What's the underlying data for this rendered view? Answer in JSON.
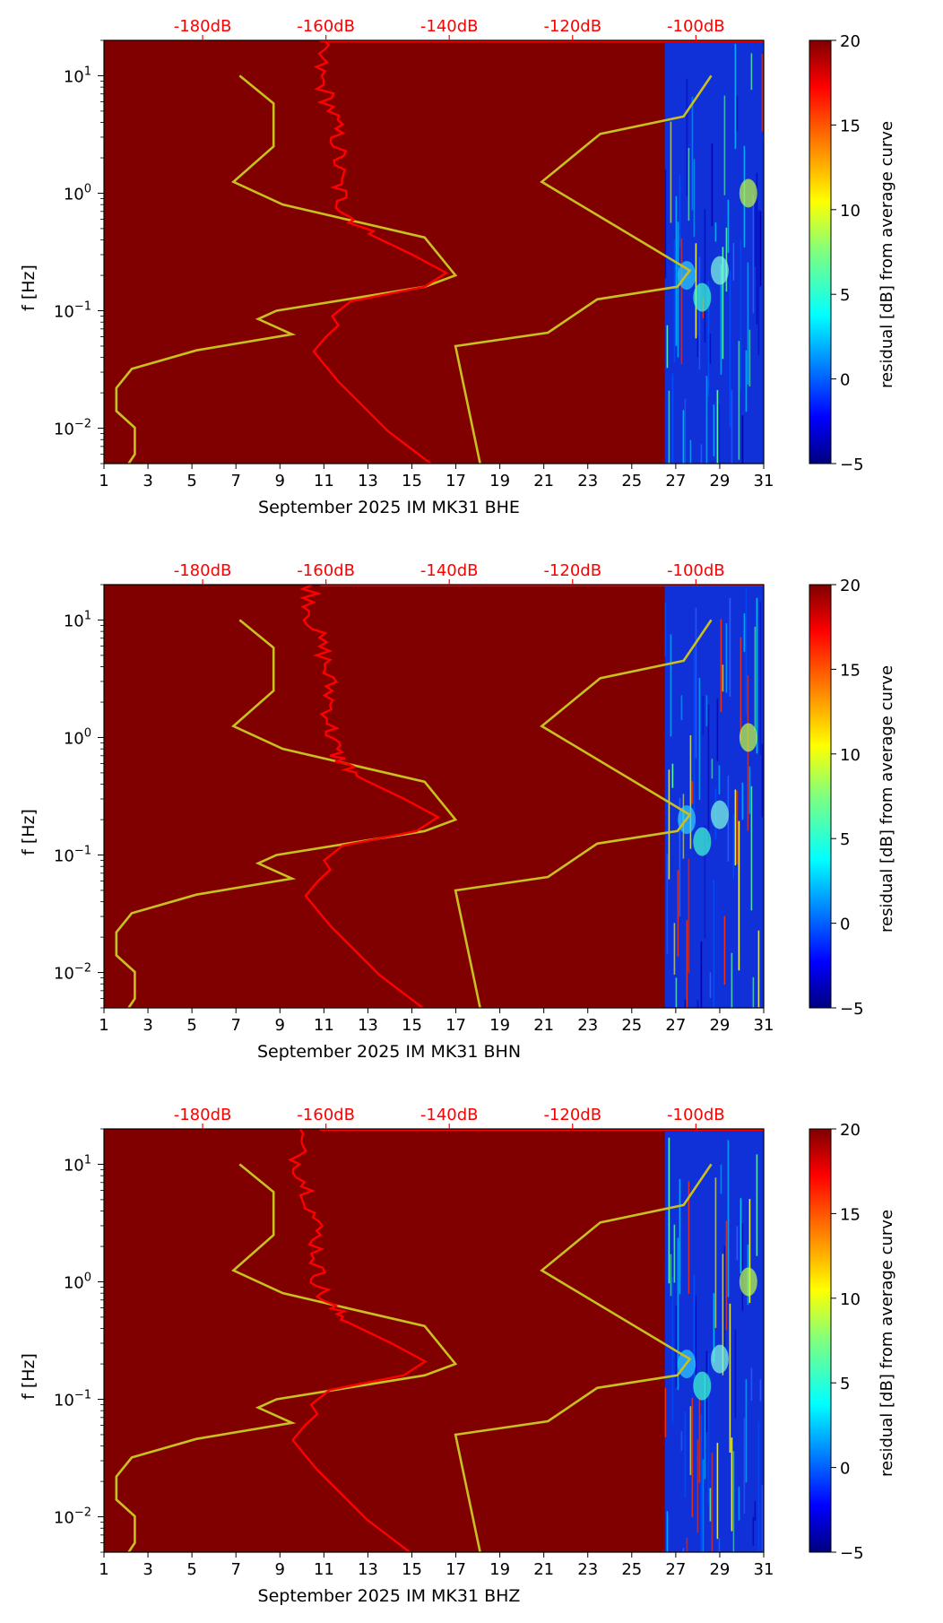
{
  "colorbar": {
    "label": "residual [dB] from average curve",
    "ticks": [
      "20",
      "15",
      "10",
      "5",
      "0",
      "−5"
    ],
    "range": [
      -5,
      20
    ]
  },
  "chart_data": [
    {
      "type": "heatmap",
      "title": "",
      "xlabel": "September 2025 IM MK31  BHE",
      "ylabel": "f [Hz]",
      "x_ticks": [
        "1",
        "3",
        "5",
        "7",
        "9",
        "11",
        "13",
        "15",
        "17",
        "19",
        "21",
        "23",
        "25",
        "27",
        "29",
        "31"
      ],
      "xlim": [
        1,
        31
      ],
      "y_ticks": [
        "10",
        "10",
        "10"
      ],
      "y_tick_exponents": [
        "1",
        "0",
        "−1"
      ],
      "y_ticks_low": [
        "10"
      ],
      "y_ticks_low_exponents": [
        "−2"
      ],
      "ylim_hz": [
        0.005,
        20
      ],
      "top_axis_ticks": [
        "-180dB",
        "-160dB",
        "-140dB",
        "-120dB",
        "-100dB"
      ],
      "data_start_day": 26.5,
      "fill_color": "#800000",
      "series": [
        {
          "name": "NLNM/NHNM model (yellow)",
          "color": "#c8c020"
        },
        {
          "name": "Median PSD (red)",
          "color": "#ff0000"
        }
      ]
    },
    {
      "type": "heatmap",
      "title": "",
      "xlabel": "September 2025 IM MK31  BHN",
      "ylabel": "f [Hz]",
      "x_ticks": [
        "1",
        "3",
        "5",
        "7",
        "9",
        "11",
        "13",
        "15",
        "17",
        "19",
        "21",
        "23",
        "25",
        "27",
        "29",
        "31"
      ],
      "xlim": [
        1,
        31
      ],
      "y_ticks": [
        "10",
        "10",
        "10"
      ],
      "y_tick_exponents": [
        "1",
        "0",
        "−1"
      ],
      "y_ticks_low": [
        "10"
      ],
      "y_ticks_low_exponents": [
        "−2"
      ],
      "ylim_hz": [
        0.005,
        20
      ],
      "top_axis_ticks": [
        "-180dB",
        "-160dB",
        "-140dB",
        "-120dB",
        "-100dB"
      ],
      "data_start_day": 26.5,
      "fill_color": "#800000",
      "series": [
        {
          "name": "NLNM/NHNM model (yellow)",
          "color": "#c8c020"
        },
        {
          "name": "Median PSD (red)",
          "color": "#ff0000"
        }
      ]
    },
    {
      "type": "heatmap",
      "title": "",
      "xlabel": "September 2025 IM MK31  BHZ",
      "ylabel": "f [Hz]",
      "x_ticks": [
        "1",
        "3",
        "5",
        "7",
        "9",
        "11",
        "13",
        "15",
        "17",
        "19",
        "21",
        "23",
        "25",
        "27",
        "29",
        "31"
      ],
      "xlim": [
        1,
        31
      ],
      "y_ticks": [
        "10",
        "10",
        "10"
      ],
      "y_tick_exponents": [
        "1",
        "0",
        "−1"
      ],
      "y_ticks_low": [
        "10"
      ],
      "y_ticks_low_exponents": [
        "−2"
      ],
      "ylim_hz": [
        0.005,
        20
      ],
      "top_axis_ticks": [
        "-180dB",
        "-160dB",
        "-140dB",
        "-120dB",
        "-100dB"
      ],
      "data_start_day": 26.5,
      "fill_color": "#800000",
      "series": [
        {
          "name": "NLNM/NHNM model (yellow)",
          "color": "#c8c020"
        },
        {
          "name": "Median PSD (red)",
          "color": "#ff0000"
        }
      ]
    }
  ]
}
